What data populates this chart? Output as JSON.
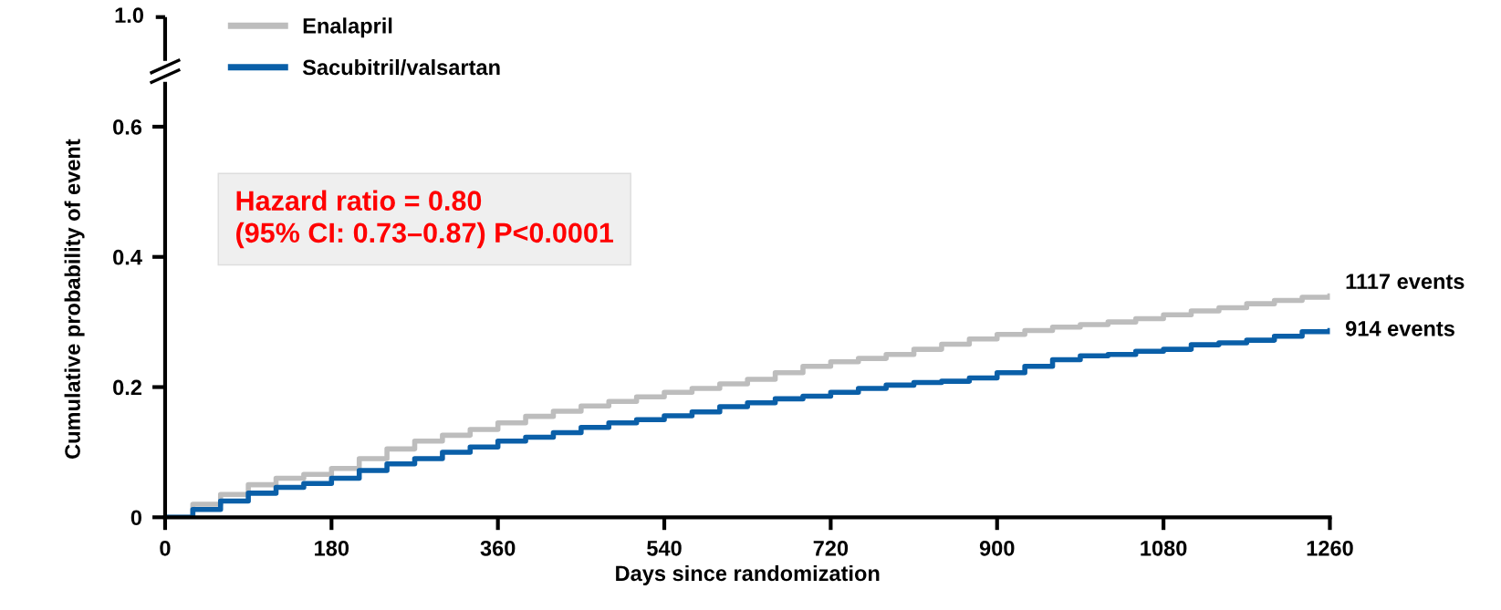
{
  "chart_data": [
    {
      "type": "step",
      "xlabel": "Days since randomization",
      "ylabel": "Cumulative probability of event",
      "x": [
        0,
        30,
        60,
        90,
        120,
        150,
        180,
        210,
        240,
        270,
        300,
        330,
        360,
        390,
        420,
        450,
        480,
        510,
        540,
        570,
        600,
        630,
        660,
        690,
        720,
        750,
        780,
        810,
        840,
        870,
        900,
        930,
        960,
        990,
        1020,
        1050,
        1080,
        1110,
        1140,
        1170,
        1200,
        1230,
        1260
      ],
      "series": [
        {
          "name": "Enalapril",
          "color": "#bdbdbd",
          "values": [
            0,
            0.02,
            0.035,
            0.05,
            0.06,
            0.066,
            0.075,
            0.09,
            0.105,
            0.117,
            0.126,
            0.135,
            0.145,
            0.155,
            0.163,
            0.171,
            0.178,
            0.185,
            0.192,
            0.198,
            0.205,
            0.212,
            0.222,
            0.232,
            0.239,
            0.244,
            0.25,
            0.258,
            0.266,
            0.274,
            0.281,
            0.287,
            0.292,
            0.296,
            0.3,
            0.305,
            0.311,
            0.317,
            0.322,
            0.328,
            0.333,
            0.338,
            0.34
          ]
        },
        {
          "name": "Sacubitril/valsartan",
          "color": "#0a5fa8",
          "values": [
            0,
            0.012,
            0.025,
            0.037,
            0.046,
            0.052,
            0.06,
            0.072,
            0.082,
            0.09,
            0.1,
            0.108,
            0.117,
            0.123,
            0.13,
            0.138,
            0.145,
            0.15,
            0.156,
            0.162,
            0.17,
            0.176,
            0.182,
            0.186,
            0.192,
            0.198,
            0.203,
            0.207,
            0.209,
            0.214,
            0.222,
            0.232,
            0.242,
            0.248,
            0.25,
            0.255,
            0.258,
            0.265,
            0.268,
            0.272,
            0.278,
            0.285,
            0.287
          ]
        }
      ],
      "xlim": [
        0,
        1260
      ],
      "xticks": [
        0,
        180,
        360,
        540,
        720,
        900,
        1080,
        1260
      ],
      "ylim": [
        0,
        0.67
      ],
      "yticks": [
        0,
        0.2,
        0.4,
        0.6
      ],
      "legend": "top left",
      "grid": false,
      "annotations": [
        "1.0",
        "Hazard ratio = 0.80\n(95% CI: 0.73–0.87) P<0.0001",
        {
          "text": "1117 events",
          "x": 1260,
          "y": 0.34
        },
        {
          "text": "914 events",
          "x": 1260,
          "y": 0.287
        }
      ]
    }
  ]
}
